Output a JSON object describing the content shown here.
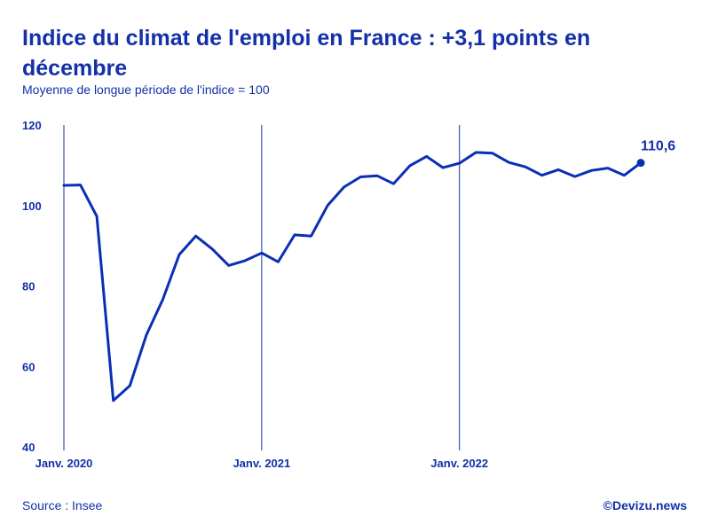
{
  "title": "Indice du climat de l'emploi en France : +3,1 points en décembre",
  "subtitle": "Moyenne de longue période de l'indice = 100",
  "source": "Source : Insee",
  "credit": "©Devizu.news",
  "colors": {
    "line": "#0a2fb5",
    "text": "#1330a8",
    "axis": "#1330a8"
  },
  "chart_data": {
    "type": "line",
    "title": "Indice du climat de l'emploi en France : +3,1 points en décembre",
    "subtitle": "Moyenne de longue période de l'indice = 100",
    "ylim": [
      40,
      120
    ],
    "yticks": [
      40,
      60,
      80,
      100,
      120
    ],
    "x_start": "2020-01",
    "x_end": "2022-12",
    "x_ticks": [
      {
        "at": "2020-01",
        "label": "Janv. 2020"
      },
      {
        "at": "2021-01",
        "label": "Janv. 2021"
      },
      {
        "at": "2022-01",
        "label": "Janv. 2022"
      }
    ],
    "grid": "vertical lines at January of each year",
    "series": [
      {
        "name": "",
        "x": [
          "2020-01",
          "2020-02",
          "2020-03",
          "2020-04",
          "2020-05",
          "2020-06",
          "2020-07",
          "2020-08",
          "2020-09",
          "2020-10",
          "2020-11",
          "2020-12",
          "2021-01",
          "2021-02",
          "2021-03",
          "2021-04",
          "2021-05",
          "2021-06",
          "2021-07",
          "2021-08",
          "2021-09",
          "2021-10",
          "2021-11",
          "2021-12",
          "2022-01",
          "2022-02",
          "2022-03",
          "2022-04",
          "2022-05",
          "2022-06",
          "2022-07",
          "2022-08",
          "2022-09",
          "2022-10",
          "2022-11",
          "2022-12"
        ],
        "values": [
          105.0,
          105.1,
          97.3,
          51.5,
          55.2,
          67.8,
          76.6,
          87.8,
          92.4,
          89.2,
          85.1,
          86.3,
          88.2,
          86.0,
          92.7,
          92.4,
          100.0,
          104.6,
          107.1,
          107.4,
          105.4,
          109.9,
          112.2,
          109.4,
          110.5,
          113.2,
          113.0,
          110.7,
          109.6,
          107.5,
          108.9,
          107.2,
          108.7,
          109.3,
          107.5,
          110.6
        ]
      }
    ],
    "annotations": [
      {
        "at": "2022-12",
        "value": 110.6,
        "label": "110,6"
      }
    ]
  }
}
